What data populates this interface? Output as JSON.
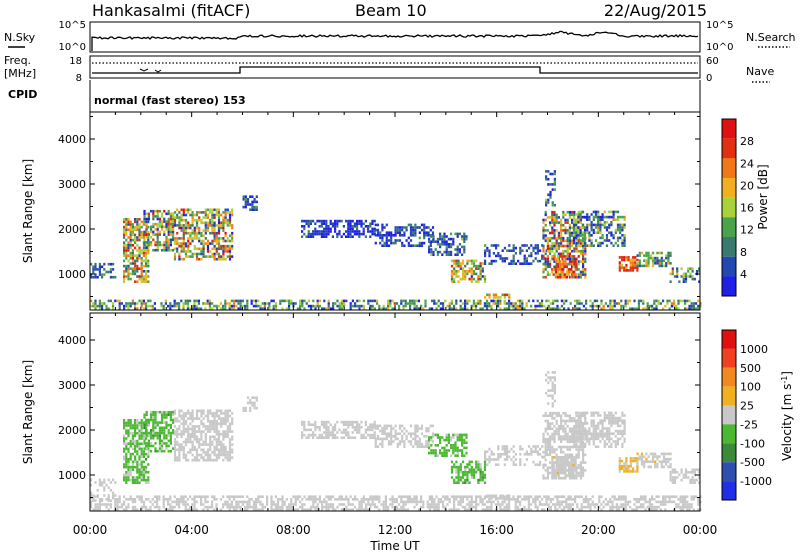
{
  "header": {
    "station": "Hankasalmi (fitACF)",
    "beam": "Beam 10",
    "date": "22/Aug/2015"
  },
  "scan": {
    "nsky_label": "N.Sky",
    "nsky_ticks": [
      "10^5",
      "10^0"
    ],
    "nsearch_label": "N.Search",
    "nsearch_ticks": [
      "10^5",
      "10^0"
    ],
    "freq_label_1": "Freq.",
    "freq_label_2": "[MHz]",
    "freq_ticks": [
      "18",
      "8"
    ],
    "nave_label": "Nave",
    "nave_ticks": [
      "60",
      "0"
    ],
    "cpid_label": "CPID",
    "cpid_text": "normal (fast stereo) 153"
  },
  "x_ticks": [
    "00:00",
    "04:00",
    "08:00",
    "12:00",
    "16:00",
    "20:00",
    "00:00"
  ],
  "x_label": "Time UT",
  "colors": {
    "power": [
      "#1f1fe6",
      "#2348b0",
      "#3a7a6e",
      "#4aa34a",
      "#a8d23a",
      "#f0b020",
      "#f07818",
      "#e03010",
      "#e01010"
    ],
    "velocity": [
      "#e01010",
      "#f04020",
      "#f08a20",
      "#f0b020",
      "#c8c8c8",
      "#4ab830",
      "#3a8a3a",
      "#2e4fb0",
      "#1f2fe6"
    ]
  },
  "chart_data": [
    {
      "type": "heatmap",
      "name": "power",
      "ylabel": "Slant Range [km]",
      "y_ticks": [
        "1000",
        "2000",
        "3000",
        "4000"
      ],
      "ylim": [
        200,
        4600
      ],
      "xlim_hours": [
        0,
        24
      ],
      "colorbar_label": "Power [dB]",
      "colorbar_ticks": [
        "4",
        "8",
        "12",
        "16",
        "20",
        "24",
        "28"
      ],
      "clim": [
        0,
        30
      ],
      "regions": [
        {
          "t0": 0.0,
          "t1": 24.0,
          "r0": 200,
          "r1": 420,
          "v": 10,
          "density": 0.55,
          "spread": 8
        },
        {
          "t0": 1.3,
          "t1": 2.3,
          "r0": 800,
          "r1": 2200,
          "v": 16,
          "density": 0.7,
          "spread": 9
        },
        {
          "t0": 2.1,
          "t1": 3.3,
          "r0": 1500,
          "r1": 2400,
          "v": 14,
          "density": 0.65,
          "spread": 10
        },
        {
          "t0": 3.3,
          "t1": 5.6,
          "r0": 1300,
          "r1": 2400,
          "v": 15,
          "density": 0.65,
          "spread": 10
        },
        {
          "t0": 0.0,
          "t1": 1.0,
          "r0": 900,
          "r1": 1200,
          "v": 6,
          "density": 0.4,
          "spread": 4
        },
        {
          "t0": 6.0,
          "t1": 6.6,
          "r0": 2400,
          "r1": 2700,
          "v": 5,
          "density": 0.5,
          "spread": 4
        },
        {
          "t0": 8.3,
          "t1": 11.2,
          "r0": 1800,
          "r1": 2150,
          "v": 4,
          "density": 0.6,
          "spread": 4
        },
        {
          "t0": 11.2,
          "t1": 13.5,
          "r0": 1600,
          "r1": 2100,
          "v": 4,
          "density": 0.5,
          "spread": 4
        },
        {
          "t0": 13.3,
          "t1": 14.8,
          "r0": 1400,
          "r1": 1900,
          "v": 6,
          "density": 0.5,
          "spread": 5
        },
        {
          "t0": 14.2,
          "t1": 15.5,
          "r0": 800,
          "r1": 1300,
          "v": 16,
          "density": 0.6,
          "spread": 8
        },
        {
          "t0": 15.5,
          "t1": 16.5,
          "r0": 450,
          "r1": 560,
          "v": 20,
          "density": 0.7,
          "spread": 6
        },
        {
          "t0": 15.5,
          "t1": 18.0,
          "r0": 1200,
          "r1": 1650,
          "v": 5,
          "density": 0.4,
          "spread": 4
        },
        {
          "t0": 17.8,
          "t1": 19.5,
          "r0": 900,
          "r1": 2400,
          "v": 14,
          "density": 0.6,
          "spread": 12
        },
        {
          "t0": 18.2,
          "t1": 19.1,
          "r0": 900,
          "r1": 1400,
          "v": 24,
          "density": 0.7,
          "spread": 6
        },
        {
          "t0": 19.0,
          "t1": 21.0,
          "r0": 1600,
          "r1": 2400,
          "v": 9,
          "density": 0.55,
          "spread": 8
        },
        {
          "t0": 20.8,
          "t1": 21.5,
          "r0": 1050,
          "r1": 1350,
          "v": 24,
          "density": 0.75,
          "spread": 6
        },
        {
          "t0": 21.5,
          "t1": 22.8,
          "r0": 1150,
          "r1": 1450,
          "v": 12,
          "density": 0.6,
          "spread": 6
        },
        {
          "t0": 22.8,
          "t1": 24.0,
          "r0": 800,
          "r1": 1100,
          "v": 10,
          "density": 0.5,
          "spread": 6
        },
        {
          "t0": 17.9,
          "t1": 18.3,
          "r0": 2500,
          "r1": 3300,
          "v": 6,
          "density": 0.4,
          "spread": 5
        }
      ]
    },
    {
      "type": "heatmap",
      "name": "velocity",
      "ylabel": "Slant Range [km]",
      "y_ticks": [
        "1000",
        "2000",
        "3000",
        "4000"
      ],
      "ylim": [
        200,
        4600
      ],
      "xlim_hours": [
        0,
        24
      ],
      "colorbar_label": "Velocity [m s^-1]",
      "colorbar_ticks": [
        "1000",
        "500",
        "100",
        "25",
        "-25",
        "-100",
        "-500",
        "-1000"
      ],
      "clim": [
        -1200,
        1200
      ],
      "regions": [
        {
          "t0": 0.0,
          "t1": 24.0,
          "r0": 200,
          "r1": 500,
          "v": 0,
          "density": 0.55,
          "spread": 60
        },
        {
          "t0": 1.3,
          "t1": 2.3,
          "r0": 800,
          "r1": 2200,
          "v": -200,
          "density": 0.7,
          "spread": 120
        },
        {
          "t0": 2.1,
          "t1": 3.3,
          "r0": 1500,
          "r1": 2400,
          "v": -250,
          "density": 0.65,
          "spread": 140
        },
        {
          "t0": 3.3,
          "t1": 5.6,
          "r0": 1300,
          "r1": 2400,
          "v": 0,
          "density": 0.65,
          "spread": 30
        },
        {
          "t0": 0.0,
          "t1": 1.0,
          "r0": 400,
          "r1": 900,
          "v": -60,
          "density": 0.3,
          "spread": 40
        },
        {
          "t0": 6.0,
          "t1": 6.6,
          "r0": 2400,
          "r1": 2700,
          "v": 0,
          "density": 0.5,
          "spread": 20
        },
        {
          "t0": 8.3,
          "t1": 11.2,
          "r0": 1800,
          "r1": 2150,
          "v": 0,
          "density": 0.6,
          "spread": 20
        },
        {
          "t0": 11.2,
          "t1": 13.5,
          "r0": 1600,
          "r1": 2100,
          "v": 0,
          "density": 0.5,
          "spread": 20
        },
        {
          "t0": 13.3,
          "t1": 14.8,
          "r0": 1400,
          "r1": 1900,
          "v": -200,
          "density": 0.55,
          "spread": 80
        },
        {
          "t0": 14.2,
          "t1": 15.5,
          "r0": 800,
          "r1": 1300,
          "v": -250,
          "density": 0.6,
          "spread": 120
        },
        {
          "t0": 15.5,
          "t1": 16.5,
          "r0": 450,
          "r1": 560,
          "v": -60,
          "density": 0.7,
          "spread": 20
        },
        {
          "t0": 15.5,
          "t1": 18.0,
          "r0": 1200,
          "r1": 1650,
          "v": 0,
          "density": 0.4,
          "spread": 20
        },
        {
          "t0": 17.8,
          "t1": 19.5,
          "r0": 900,
          "r1": 2400,
          "v": 0,
          "density": 0.6,
          "spread": 60
        },
        {
          "t0": 18.2,
          "t1": 19.1,
          "r0": 900,
          "r1": 1400,
          "v": 60,
          "density": 0.7,
          "spread": 80
        },
        {
          "t0": 19.0,
          "t1": 21.0,
          "r0": 1600,
          "r1": 2400,
          "v": 0,
          "density": 0.55,
          "spread": 20
        },
        {
          "t0": 20.8,
          "t1": 21.5,
          "r0": 1050,
          "r1": 1350,
          "v": 150,
          "density": 0.75,
          "spread": 100
        },
        {
          "t0": 21.5,
          "t1": 22.8,
          "r0": 1150,
          "r1": 1450,
          "v": 80,
          "density": 0.6,
          "spread": 60
        },
        {
          "t0": 22.8,
          "t1": 24.0,
          "r0": 800,
          "r1": 1100,
          "v": 0,
          "density": 0.5,
          "spread": 20
        },
        {
          "t0": 17.9,
          "t1": 18.3,
          "r0": 2500,
          "r1": 3300,
          "v": 0,
          "density": 0.4,
          "spread": 20
        }
      ]
    }
  ]
}
